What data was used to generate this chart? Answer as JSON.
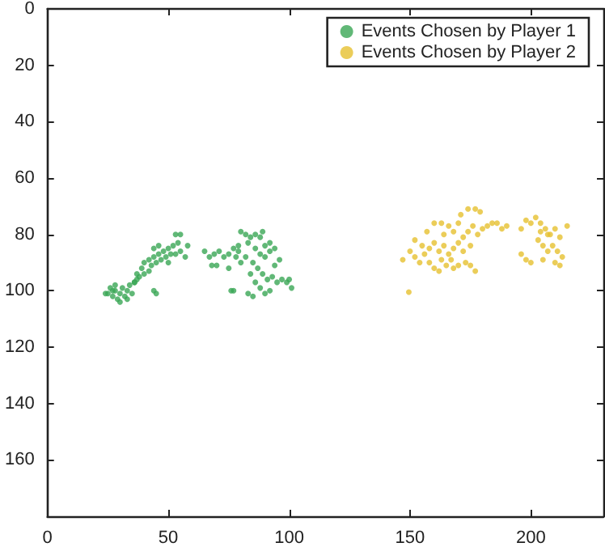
{
  "chart_data": {
    "type": "scatter",
    "xlim": [
      0,
      230
    ],
    "xticks": [
      0,
      50,
      100,
      150,
      200
    ],
    "ylim": [
      180,
      0
    ],
    "yticks": [
      0,
      20,
      40,
      60,
      80,
      100,
      120,
      140,
      160
    ],
    "grid": false,
    "legend": "top right",
    "marker": "circle",
    "series": [
      {
        "name": "Events Chosen by Player 1",
        "color": "#3aa655",
        "x": [
          25,
          26,
          27,
          28,
          29,
          30,
          31,
          32,
          33,
          34,
          35,
          36,
          28,
          30,
          27,
          33,
          37,
          24,
          38,
          40,
          42,
          40,
          42,
          44,
          46,
          48,
          50,
          52,
          54,
          55,
          53,
          45,
          47,
          49,
          51,
          53,
          55,
          57,
          58,
          44,
          46,
          50,
          43,
          39,
          37,
          44,
          45,
          36,
          65,
          67,
          69,
          71,
          73,
          75,
          77,
          79,
          78,
          70,
          68,
          75,
          77,
          76,
          80,
          82,
          84,
          86,
          88,
          89,
          83,
          86,
          88,
          90,
          92,
          94,
          85,
          87,
          89,
          91,
          93,
          95,
          97,
          99,
          101,
          100,
          84,
          86,
          88,
          90,
          92,
          85,
          83,
          94,
          96,
          90,
          82,
          80,
          79,
          92
        ],
        "values": [
          101,
          99,
          102,
          100,
          103,
          101,
          99,
          102,
          100,
          98,
          101,
          97,
          98,
          104,
          100,
          103,
          96,
          101,
          95,
          94,
          93,
          90,
          89,
          88,
          87,
          86,
          85,
          84,
          83,
          80,
          80,
          90,
          89,
          88,
          87,
          87,
          86,
          88,
          84,
          85,
          84,
          90,
          91,
          92,
          94,
          100,
          101,
          97,
          86,
          88,
          87,
          86,
          88,
          87,
          85,
          84,
          88,
          91,
          91,
          92,
          100,
          100,
          79,
          80,
          81,
          80,
          81,
          79,
          83,
          85,
          87,
          84,
          86,
          85,
          90,
          92,
          94,
          96,
          95,
          97,
          96,
          97,
          99,
          96,
          94,
          97,
          99,
          101,
          100,
          102,
          101,
          91,
          89,
          88,
          88,
          90,
          86,
          83
        ]
      },
      {
        "name": "Events Chosen by Player 2",
        "color": "#e6c030",
        "x": [
          147,
          150,
          152,
          154,
          156,
          158,
          160,
          162,
          164,
          166,
          168,
          170,
          172,
          174,
          176,
          178,
          180,
          182,
          184,
          186,
          188,
          160,
          163,
          166,
          168,
          170,
          171,
          174,
          177,
          179,
          158,
          160,
          162,
          165,
          168,
          170,
          173,
          175,
          177,
          157,
          152,
          155,
          163,
          167,
          149.5,
          164,
          172,
          175,
          190,
          196,
          198,
          200,
          202,
          204,
          206,
          208,
          210,
          212,
          209,
          207,
          205,
          203,
          211,
          213,
          215,
          196,
          198,
          200,
          205,
          210,
          212,
          207,
          204
        ],
        "values": [
          89,
          86,
          88,
          90,
          87,
          85,
          83,
          86,
          84,
          87,
          85,
          83,
          81,
          79,
          77,
          80,
          78,
          77,
          76,
          76,
          78,
          76,
          76,
          77,
          79,
          76,
          73,
          71,
          71,
          72,
          90,
          92,
          93,
          91,
          92,
          91,
          90,
          91,
          93,
          79,
          82,
          84,
          89,
          89,
          100.5,
          80,
          86,
          84,
          77,
          78,
          75,
          76,
          74,
          76,
          78,
          80,
          78,
          81,
          84,
          86,
          84,
          82,
          86,
          88,
          77,
          87,
          89,
          90,
          89,
          90,
          91,
          80,
          79
        ]
      }
    ]
  }
}
